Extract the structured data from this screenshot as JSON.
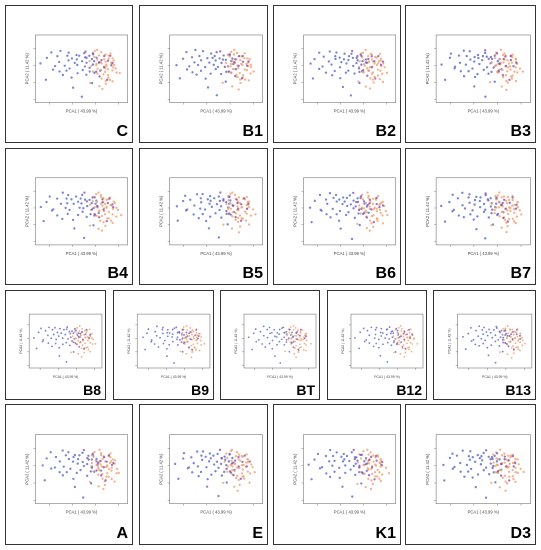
{
  "axis": {
    "xlabel": "PCA1 ( 43.99 %)",
    "ylabel": "PCA2 ( 11.42 %)"
  },
  "colors": {
    "series_a": "#5566cc",
    "series_b": "#f0a070",
    "series_c": "#8a4fa8",
    "frame": "#333333"
  },
  "panels": [
    {
      "label": "C"
    },
    {
      "label": "B1"
    },
    {
      "label": "B2"
    },
    {
      "label": "B3"
    },
    {
      "label": "B4"
    },
    {
      "label": "B5"
    },
    {
      "label": "B6"
    },
    {
      "label": "B7"
    },
    {
      "label": "B8"
    },
    {
      "label": "B9"
    },
    {
      "label": "BT"
    },
    {
      "label": "B12"
    },
    {
      "label": "B13"
    },
    {
      "label": "A"
    },
    {
      "label": "E"
    },
    {
      "label": "K1"
    },
    {
      "label": "D3"
    }
  ],
  "chart_data": {
    "type": "scatter",
    "xlabel": "PCA1 ( 43.99 %)",
    "ylabel": "PCA2 ( 11.42 %)",
    "xlim": [
      -4,
      2
    ],
    "ylim": [
      -3,
      3
    ],
    "grid": false,
    "series": [
      {
        "color": "#5566cc",
        "x": [
          -3.6,
          -3.2,
          -3.0,
          -2.8,
          -2.6,
          -2.4,
          -2.3,
          -2.1,
          -2.0,
          -1.9,
          -1.8,
          -1.7,
          -1.6,
          -1.5,
          -1.4,
          -1.3,
          -1.2,
          -1.1,
          -1.0,
          -0.9,
          -0.8,
          -0.7,
          -0.6,
          -0.5,
          -0.4,
          -0.3,
          -0.2,
          -0.1,
          0.0,
          0.1,
          -2.5,
          -2.2,
          -1.9,
          -1.6,
          -1.3,
          -1.0,
          -0.7,
          -0.4,
          -0.1,
          0.2,
          -3.4,
          -2.9,
          -1.5,
          -0.9,
          -0.3
        ],
        "y": [
          0.4,
          0.9,
          1.4,
          0.2,
          1.1,
          0.6,
          1.6,
          0.3,
          1.2,
          0.8,
          1.5,
          0.1,
          1.0,
          0.6,
          1.3,
          0.9,
          0.4,
          1.2,
          0.7,
          1.4,
          0.2,
          1.0,
          0.5,
          1.1,
          0.8,
          0.3,
          1.2,
          0.6,
          0.9,
          0.5,
          -0.3,
          -0.6,
          -0.2,
          -0.8,
          -0.4,
          -0.1,
          -0.5,
          -0.2,
          -0.3,
          -0.1,
          -0.9,
          0.0,
          -1.6,
          -2.4,
          -1.2
        ]
      },
      {
        "color": "#f0a070",
        "x": [
          -0.4,
          -0.3,
          -0.2,
          -0.1,
          0.0,
          0.1,
          0.2,
          0.3,
          0.4,
          0.5,
          0.6,
          0.7,
          0.8,
          0.9,
          1.0,
          1.1,
          1.2,
          -0.2,
          0.0,
          0.2,
          0.4,
          0.6,
          0.8,
          1.0,
          1.2,
          -0.3,
          -0.1,
          0.1,
          0.3,
          0.5,
          0.7,
          0.9,
          1.1,
          0.0,
          0.2,
          0.4,
          0.6,
          0.8,
          1.0,
          0.3,
          0.5,
          0.7,
          0.9,
          1.3,
          1.5,
          -0.5,
          0.1,
          0.6,
          1.1,
          0.4
        ],
        "y": [
          0.6,
          0.2,
          1.0,
          0.4,
          0.8,
          0.0,
          1.2,
          0.5,
          0.9,
          0.1,
          0.7,
          0.3,
          1.0,
          0.5,
          0.2,
          0.8,
          0.4,
          -0.2,
          -0.4,
          -0.1,
          -0.5,
          -0.3,
          -0.6,
          -0.2,
          -0.4,
          1.3,
          1.5,
          1.6,
          1.4,
          1.2,
          1.1,
          1.3,
          0.9,
          0.3,
          0.6,
          0.2,
          0.4,
          0.0,
          0.6,
          -0.8,
          -1.0,
          -0.7,
          -0.9,
          0.1,
          -0.3,
          -1.2,
          -1.5,
          -1.3,
          -1.1,
          -1.8
        ]
      },
      {
        "color": "#8a4fa8",
        "x": [
          -0.6,
          -0.2,
          0.1,
          0.4,
          0.7,
          1.0,
          -0.4,
          0.3,
          0.8,
          -0.1,
          0.5,
          1.1,
          0.2,
          -0.8,
          0.6
        ],
        "y": [
          0.9,
          1.3,
          0.5,
          1.1,
          0.7,
          0.3,
          0.1,
          0.8,
          1.2,
          -0.2,
          0.2,
          0.6,
          -0.6,
          1.6,
          -0.9
        ]
      }
    ]
  }
}
